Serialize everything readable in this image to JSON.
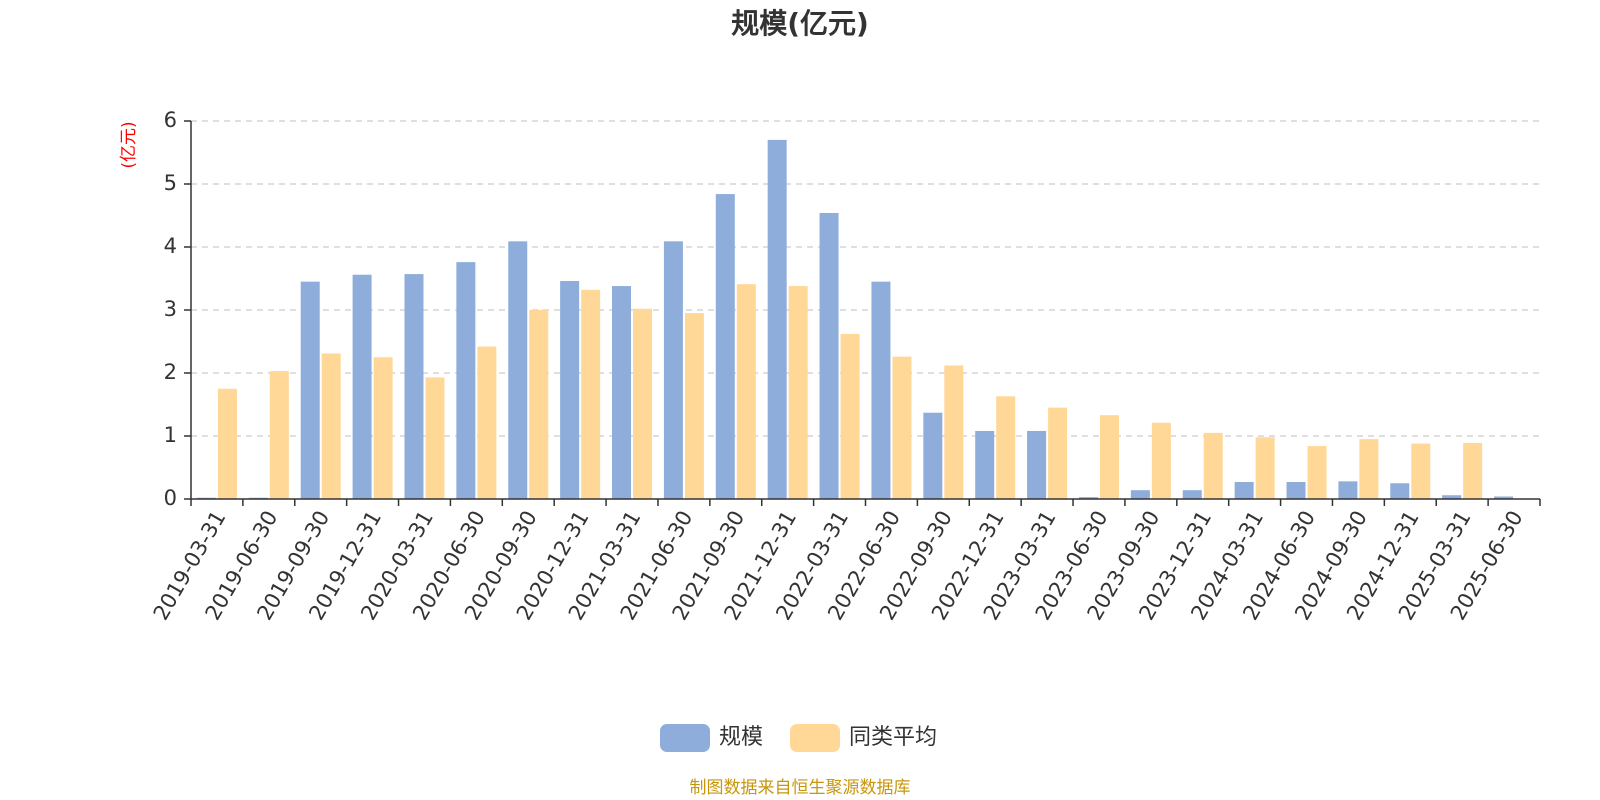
{
  "chart_data": {
    "type": "bar",
    "title": "规模(亿元)",
    "ylabel": "(亿元)",
    "ylim": [
      0,
      6
    ],
    "yticks": [
      0,
      1,
      2,
      3,
      4,
      5,
      6
    ],
    "grid": true,
    "legend_position": "bottom-center",
    "categories": [
      "2019-03-31",
      "2019-06-30",
      "2019-09-30",
      "2019-12-31",
      "2020-03-31",
      "2020-06-30",
      "2020-09-30",
      "2020-12-31",
      "2021-03-31",
      "2021-06-30",
      "2021-09-30",
      "2021-12-31",
      "2022-03-31",
      "2022-06-30",
      "2022-09-30",
      "2022-12-31",
      "2023-03-31",
      "2023-06-30",
      "2023-09-30",
      "2023-12-31",
      "2024-03-31",
      "2024-06-30",
      "2024-09-30",
      "2024-12-31",
      "2025-03-31",
      "2025-06-30"
    ],
    "series": [
      {
        "name": "规模",
        "color": "#8EADDB",
        "values": [
          0.02,
          0.02,
          3.45,
          3.56,
          3.57,
          3.76,
          4.09,
          3.46,
          3.38,
          4.09,
          4.84,
          5.7,
          4.54,
          3.45,
          1.37,
          1.08,
          1.08,
          0.03,
          0.14,
          0.14,
          0.27,
          0.27,
          0.28,
          0.25,
          0.06,
          0.04
        ]
      },
      {
        "name": "同类平均",
        "color": "#FFD897",
        "values": [
          1.75,
          2.03,
          2.31,
          2.25,
          1.93,
          2.42,
          3.0,
          3.32,
          3.02,
          2.95,
          3.41,
          3.38,
          2.62,
          2.26,
          2.12,
          1.63,
          1.45,
          1.33,
          1.21,
          1.05,
          0.98,
          0.84,
          0.95,
          0.88,
          0.89,
          null
        ]
      }
    ]
  },
  "footer": {
    "source": "制图数据来自恒生聚源数据库"
  },
  "colors": {
    "axis": "#333333",
    "grid": "#cccccc",
    "unit_label": "#ff0000",
    "source": "#c8960c",
    "title": "#333333"
  }
}
